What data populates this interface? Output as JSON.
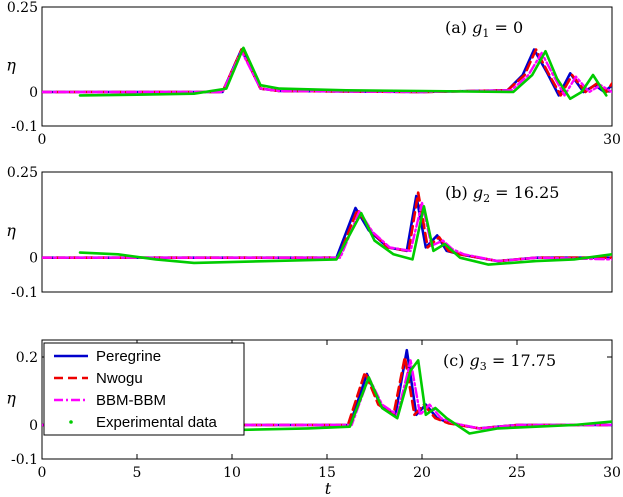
{
  "figure": {
    "xlabel": "t",
    "ylabel": "η"
  },
  "colors": {
    "peregrine": "#0000cc",
    "nwogu": "#ee0000",
    "bbm": "#ff00ff",
    "experimental": "#00cc00"
  },
  "legend": {
    "placement": "upper-left of bottom panel",
    "entries": [
      "Peregrine",
      "Nwogu",
      "BBM-BBM",
      "Experimental data"
    ]
  },
  "chart_data": [
    {
      "type": "line",
      "label_prefix": "(a) ",
      "label_math": "g",
      "label_sub": "1",
      "label_value": " = 0",
      "ylabel": "η",
      "xlim": [
        0,
        30
      ],
      "ylim": [
        -0.1,
        0.25
      ],
      "xticks": [
        "0",
        "30"
      ],
      "yticks": [
        "0.25",
        "0",
        "-0.1"
      ],
      "grid": false,
      "series": [
        {
          "name": "Peregrine",
          "x": [
            0,
            9.5,
            10.5,
            11.5,
            12.5,
            20,
            24.5,
            25.3,
            25.9,
            26.6,
            27.2,
            27.8,
            28.5,
            29.1,
            29.6,
            30
          ],
          "y": [
            0,
            0,
            0.125,
            0.01,
            0.003,
            0,
            0.005,
            0.05,
            0.125,
            0.055,
            -0.01,
            0.055,
            0.0,
            0.02,
            0.0,
            0.02
          ]
        },
        {
          "name": "Nwogu",
          "x": [
            0,
            9.5,
            10.5,
            11.5,
            12.5,
            20,
            24.5,
            25.4,
            26.0,
            26.7,
            27.3,
            27.9,
            28.6,
            29.2,
            29.7,
            30
          ],
          "y": [
            0,
            0,
            0.125,
            0.01,
            0.003,
            0,
            0.005,
            0.05,
            0.125,
            0.05,
            -0.01,
            0.05,
            0.0,
            0.025,
            0.0,
            0.025
          ]
        },
        {
          "name": "BBM-BBM",
          "x": [
            0,
            9.5,
            10.5,
            11.5,
            12.5,
            20,
            24.7,
            25.6,
            26.3,
            26.9,
            27.5,
            28.1,
            28.8,
            29.4,
            30
          ],
          "y": [
            0,
            0,
            0.12,
            0.01,
            0.003,
            0,
            0.005,
            0.05,
            0.115,
            0.05,
            -0.01,
            0.045,
            0.0,
            0.02,
            0.0
          ]
        },
        {
          "name": "Experimental data",
          "x": [
            2,
            5,
            8,
            9.7,
            10.6,
            11.5,
            12.5,
            16,
            20,
            24.8,
            25.8,
            26.5,
            27.1,
            27.8,
            28.4,
            29.0,
            29.7
          ],
          "y": [
            -0.01,
            -0.008,
            -0.005,
            0.01,
            0.13,
            0.02,
            0.01,
            0.005,
            0.003,
            0.0,
            0.05,
            0.12,
            0.04,
            -0.02,
            0.0,
            0.05,
            -0.01
          ]
        }
      ]
    },
    {
      "type": "line",
      "label_prefix": "(b) ",
      "label_math": "g",
      "label_sub": "2",
      "label_value": " = 16.25",
      "ylabel": "η",
      "xlim": [
        0,
        30
      ],
      "ylim": [
        -0.1,
        0.25
      ],
      "xticks": [],
      "yticks": [
        "0.25",
        "0",
        "-0.1"
      ],
      "grid": false,
      "series": [
        {
          "name": "Peregrine",
          "x": [
            0,
            15.5,
            16.5,
            17.2,
            18.2,
            19.2,
            19.7,
            20.2,
            20.8,
            21.3,
            22.0,
            24,
            26,
            30
          ],
          "y": [
            0,
            0,
            0.145,
            0.08,
            0.03,
            0.02,
            0.18,
            0.03,
            0.065,
            0.02,
            0.01,
            -0.01,
            0.0,
            0.0
          ]
        },
        {
          "name": "Nwogu",
          "x": [
            0,
            15.6,
            16.6,
            17.3,
            18.2,
            19.3,
            19.8,
            20.3,
            20.9,
            21.4,
            22.0,
            24,
            26,
            30
          ],
          "y": [
            0,
            0,
            0.14,
            0.08,
            0.03,
            0.02,
            0.19,
            0.03,
            0.06,
            0.02,
            0.01,
            -0.01,
            0.0,
            0.0
          ]
        },
        {
          "name": "BBM-BBM",
          "x": [
            0,
            15.7,
            16.7,
            17.4,
            18.3,
            19.4,
            20.0,
            20.5,
            21.1,
            21.6,
            22.2,
            24,
            26,
            30
          ],
          "y": [
            0,
            0,
            0.135,
            0.075,
            0.03,
            0.02,
            0.16,
            0.035,
            0.05,
            0.025,
            0.01,
            -0.01,
            0.0,
            -0.005
          ]
        },
        {
          "name": "Experimental data",
          "x": [
            2,
            4,
            6,
            8,
            12,
            15.5,
            16.8,
            17.5,
            18.5,
            19.5,
            20.1,
            20.6,
            21.2,
            22.0,
            23.5,
            26,
            28,
            30
          ],
          "y": [
            0.015,
            0.01,
            -0.005,
            -0.015,
            -0.01,
            -0.005,
            0.13,
            0.05,
            0.01,
            -0.005,
            0.15,
            0.02,
            0.04,
            0.0,
            -0.02,
            -0.01,
            -0.005,
            0.01
          ]
        }
      ]
    },
    {
      "type": "line",
      "label_prefix": "(c) ",
      "label_math": "g",
      "label_sub": "3",
      "label_value": " = 17.75",
      "ylabel": "η",
      "xlim": [
        0,
        30
      ],
      "ylim": [
        -0.1,
        0.25
      ],
      "xticks": [
        "0",
        "5",
        "10",
        "15",
        "20",
        "25",
        "30"
      ],
      "yticks": [
        "0.2",
        "0",
        "-0.1"
      ],
      "grid": false,
      "series": [
        {
          "name": "Peregrine",
          "x": [
            0,
            16.2,
            17.1,
            17.8,
            18.6,
            19.2,
            19.7,
            20.2,
            20.8,
            21.5,
            23,
            25,
            30
          ],
          "y": [
            0,
            0,
            0.15,
            0.06,
            0.03,
            0.22,
            0.03,
            0.06,
            0.02,
            0.005,
            -0.01,
            0.0,
            0.0
          ]
        },
        {
          "name": "Nwogu",
          "x": [
            0,
            16.1,
            17.0,
            17.7,
            18.5,
            19.1,
            19.6,
            20.1,
            20.7,
            21.4,
            23,
            25,
            30
          ],
          "y": [
            0,
            0,
            0.155,
            0.06,
            0.03,
            0.2,
            0.03,
            0.06,
            0.02,
            0.005,
            -0.01,
            0.0,
            0.0
          ]
        },
        {
          "name": "BBM-BBM",
          "x": [
            0,
            16.3,
            17.2,
            17.9,
            18.7,
            19.4,
            19.9,
            20.4,
            21.0,
            21.7,
            23,
            25,
            30
          ],
          "y": [
            0,
            0,
            0.14,
            0.06,
            0.03,
            0.19,
            0.03,
            0.06,
            0.02,
            0.005,
            -0.01,
            0.0,
            0.0
          ]
        },
        {
          "name": "Experimental data",
          "x": [
            10,
            14,
            16.2,
            17.2,
            17.9,
            18.7,
            19.4,
            19.8,
            20.2,
            20.7,
            21.3,
            22.5,
            24,
            26,
            28,
            30
          ],
          "y": [
            -0.015,
            -0.01,
            -0.005,
            0.14,
            0.05,
            0.02,
            0.16,
            0.19,
            0.03,
            0.05,
            0.02,
            -0.025,
            -0.01,
            -0.005,
            0.0,
            0.01
          ]
        }
      ]
    }
  ]
}
